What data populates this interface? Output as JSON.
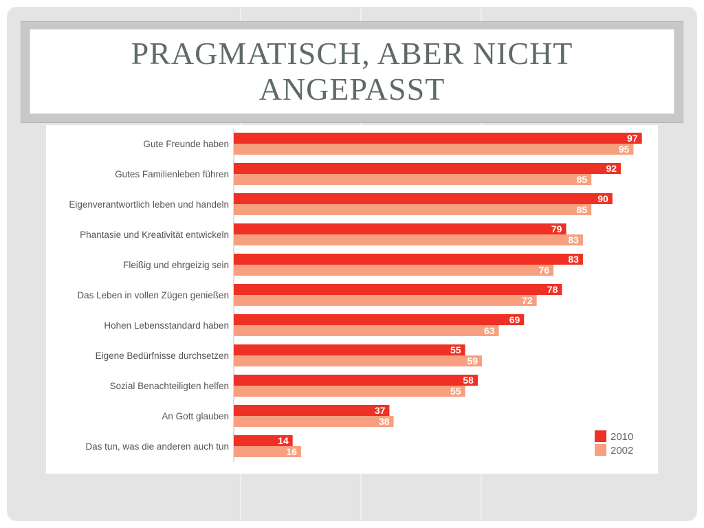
{
  "slide": {
    "title": "PRAGMATISCH, ABER NICHT ANGEPASST"
  },
  "chart_data": {
    "type": "bar",
    "orientation": "horizontal",
    "categories": [
      "Gute Freunde haben",
      "Gutes Familienleben führen",
      "Eigenverantwortlich leben und handeln",
      "Phantasie und Kreativität entwickeln",
      "Fleißig und ehrgeizig sein",
      "Das Leben in vollen Zügen genießen",
      "Hohen Lebensstandard haben",
      "Eigene Bedürfnisse durchsetzen",
      "Sozial Benachteiligten helfen",
      "An Gott glauben",
      "Das tun, was die anderen auch tun"
    ],
    "series": [
      {
        "name": "2010",
        "color": "#ee3124",
        "values": [
          97,
          92,
          90,
          79,
          83,
          78,
          69,
          55,
          58,
          37,
          14
        ]
      },
      {
        "name": "2002",
        "color": "#f7a07f",
        "values": [
          95,
          85,
          85,
          83,
          76,
          72,
          63,
          59,
          55,
          38,
          16
        ]
      }
    ],
    "xlim": [
      0,
      100
    ],
    "grid": false,
    "legend_position": "bottom-right",
    "data_labels": true
  }
}
